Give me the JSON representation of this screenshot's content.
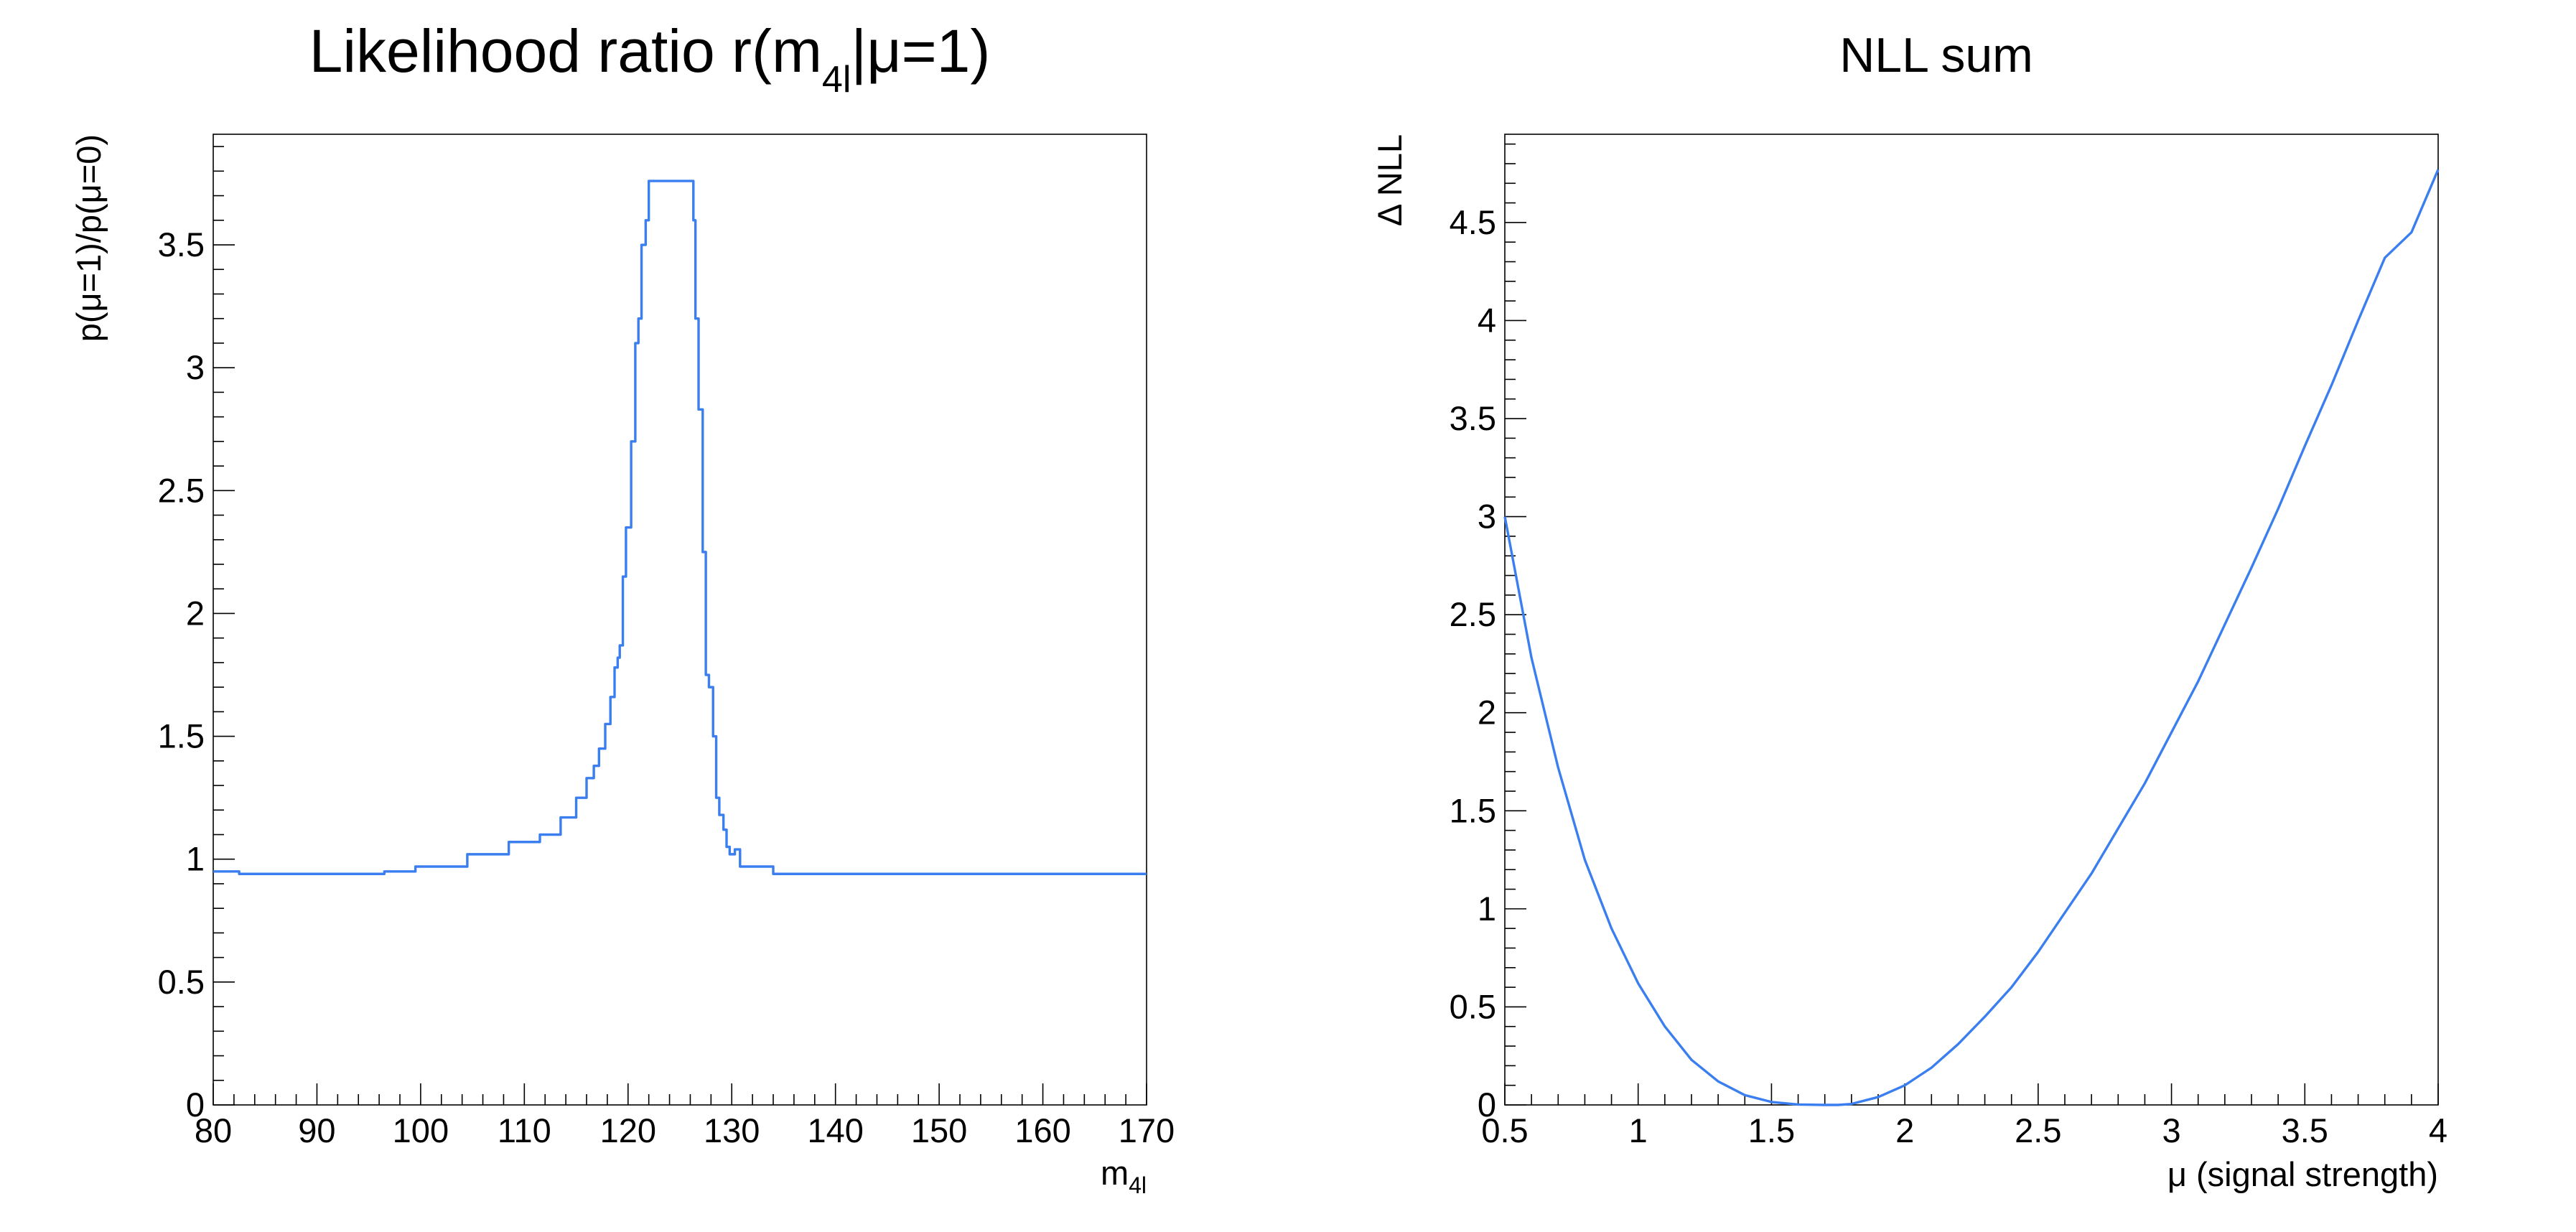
{
  "colors": {
    "line": "#3a7ef0",
    "axis": "#000000",
    "background": "#ffffff"
  },
  "chart_data": [
    {
      "type": "line",
      "title": "Likelihood ratio r(m4l|μ=1)",
      "title_main": "Likelihood ratio r(m",
      "title_sub": "4l",
      "title_tail": "|μ=1)",
      "xlabel": "m4l",
      "xlabel_main": "m",
      "xlabel_sub": "4l",
      "ylabel": "p(μ=1)/p(μ=0)",
      "xlim": [
        80,
        170
      ],
      "ylim": [
        0,
        3.95
      ],
      "xticks": [
        80,
        90,
        100,
        110,
        120,
        130,
        140,
        150,
        160,
        170
      ],
      "xtick_labels": [
        "80",
        "90",
        "100",
        "110",
        "120",
        "130",
        "140",
        "150",
        "160",
        "170"
      ],
      "yticks": [
        0,
        0.5,
        1,
        1.5,
        2,
        2.5,
        3,
        3.5
      ],
      "ytick_labels": [
        "0",
        "0.5",
        "1",
        "1.5",
        "2",
        "2.5",
        "3",
        "3.5"
      ],
      "style": "step",
      "series": [
        {
          "x": [
            80,
            82.5,
            96.5,
            99.5,
            104.5,
            108.5,
            111.5,
            113.5,
            115,
            116,
            116.7,
            117.2,
            117.8,
            118.3,
            118.7,
            119,
            119.2,
            119.5,
            119.8,
            120.3,
            120.7,
            121,
            121.3,
            121.7,
            122,
            126.3,
            126.5,
            126.8,
            127.2,
            127.5,
            127.8,
            128.2,
            128.5,
            128.8,
            129.2,
            129.5,
            129.8,
            130.3,
            130.8,
            132,
            134,
            170
          ],
          "y": [
            0.95,
            0.94,
            0.95,
            0.97,
            1.02,
            1.07,
            1.1,
            1.17,
            1.25,
            1.33,
            1.38,
            1.45,
            1.55,
            1.66,
            1.78,
            1.82,
            1.87,
            2.15,
            2.35,
            2.7,
            3.1,
            3.2,
            3.5,
            3.6,
            3.76,
            3.6,
            3.2,
            2.83,
            2.25,
            1.75,
            1.7,
            1.5,
            1.25,
            1.18,
            1.12,
            1.05,
            1.02,
            1.04,
            0.97,
            0.97,
            0.94,
            0.94
          ]
        }
      ]
    },
    {
      "type": "line",
      "title": "NLL sum",
      "xlabel": "μ (signal strength)",
      "ylabel": "Δ NLL",
      "xlim": [
        0.5,
        4
      ],
      "ylim": [
        0,
        4.95
      ],
      "xticks": [
        0.5,
        1,
        1.5,
        2,
        2.5,
        3,
        3.5,
        4
      ],
      "xtick_labels": [
        "0.5",
        "1",
        "1.5",
        "2",
        "2.5",
        "3",
        "3.5",
        "4"
      ],
      "yticks": [
        0,
        0.5,
        1,
        1.5,
        2,
        2.5,
        3,
        3.5,
        4,
        4.5
      ],
      "ytick_labels": [
        "0",
        "0.5",
        "1",
        "1.5",
        "2",
        "2.5",
        "3",
        "3.5",
        "4",
        "4.5"
      ],
      "series": [
        {
          "x": [
            0.5,
            0.6,
            0.7,
            0.8,
            0.9,
            1.0,
            1.1,
            1.2,
            1.3,
            1.4,
            1.5,
            1.6,
            1.7,
            1.75,
            1.8,
            1.9,
            2.0,
            2.1,
            2.2,
            2.3,
            2.4,
            2.5,
            2.6,
            2.7,
            2.8,
            2.9,
            3.0,
            3.1,
            3.2,
            3.3,
            3.4,
            3.5,
            3.6,
            3.7,
            3.8,
            3.9,
            4.0
          ],
          "y": [
            3.0,
            2.28,
            1.72,
            1.25,
            0.9,
            0.62,
            0.4,
            0.23,
            0.12,
            0.05,
            0.015,
            0.002,
            0.0,
            0.0,
            0.005,
            0.04,
            0.1,
            0.19,
            0.31,
            0.45,
            0.6,
            0.78,
            0.98,
            1.18,
            1.41,
            1.64,
            1.9,
            2.16,
            2.45,
            2.74,
            3.04,
            3.36,
            3.67,
            4.0,
            4.32,
            4.45,
            4.77
          ]
        }
      ]
    }
  ]
}
